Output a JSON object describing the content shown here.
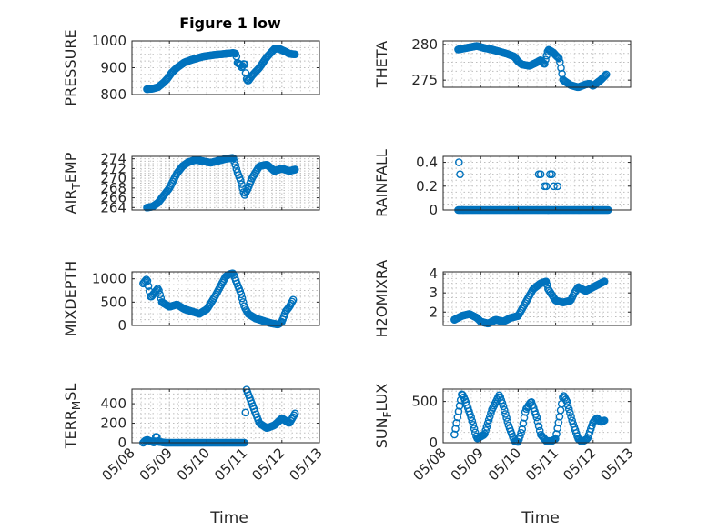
{
  "figure": {
    "title": "Figure 1 low"
  },
  "colors": {
    "marker": "#0072BD",
    "axis": "#262626",
    "grid": "#bdbdbd"
  },
  "x_axis": {
    "label": "Time",
    "ticks": [
      "05/08",
      "05/09",
      "05/10",
      "05/11",
      "05/12",
      "05/13"
    ],
    "range_days": [
      8,
      13
    ]
  },
  "chart_data": [
    {
      "type": "scatter",
      "title": "Figure 1 low",
      "ylabel": "PRESSURE",
      "ylim": [
        800,
        1000
      ],
      "yticks": [
        "800",
        "900",
        "1000"
      ],
      "x_kp": [
        8.4,
        8.55,
        8.7,
        8.85,
        8.95,
        9.05,
        9.2,
        9.4,
        9.6,
        9.9,
        10.2,
        10.5,
        10.7,
        10.78,
        10.8,
        10.9,
        10.93,
        11.0,
        11.05,
        11.1,
        11.2,
        11.4,
        11.6,
        11.8,
        11.9,
        12.1,
        12.2,
        12.35
      ],
      "y_kp": [
        820,
        822,
        828,
        845,
        860,
        880,
        900,
        920,
        930,
        942,
        948,
        952,
        955,
        952,
        920,
        910,
        900,
        920,
        860,
        850,
        870,
        900,
        940,
        970,
        972,
        960,
        952,
        950
      ],
      "n": 145,
      "grid": true,
      "legend": "none"
    },
    {
      "type": "scatter",
      "ylabel": "THETA",
      "ylim": [
        274,
        280.5
      ],
      "yticks": [
        "275",
        "280"
      ],
      "x_kp": [
        8.4,
        8.7,
        8.9,
        9.1,
        9.3,
        9.5,
        9.7,
        9.9,
        10.0,
        10.1,
        10.3,
        10.5,
        10.6,
        10.65,
        10.7,
        10.8,
        10.9,
        10.95,
        11.0,
        11.1,
        11.2,
        11.4,
        11.6,
        11.8,
        11.9,
        12.0,
        12.2,
        12.35
      ],
      "y_kp": [
        279.3,
        279.6,
        279.8,
        279.5,
        279.3,
        279.0,
        278.7,
        278.3,
        277.6,
        277.2,
        277.0,
        277.5,
        277.8,
        277.5,
        277.2,
        279.3,
        279.0,
        278.8,
        278.5,
        278.0,
        275.0,
        274.3,
        274.0,
        274.4,
        274.5,
        274.2,
        275.0,
        275.8
      ],
      "n": 145,
      "grid": true,
      "legend": "none"
    },
    {
      "type": "scatter",
      "ylabel": "AIR_TEMP",
      "ylim": [
        263.5,
        274.5
      ],
      "yticks": [
        "264",
        "266",
        "268",
        "270",
        "272",
        "274"
      ],
      "x_kp": [
        8.4,
        8.55,
        8.7,
        8.85,
        9.0,
        9.2,
        9.35,
        9.5,
        9.7,
        9.9,
        10.1,
        10.3,
        10.5,
        10.7,
        10.75,
        10.8,
        10.9,
        11.0,
        11.1,
        11.2,
        11.4,
        11.6,
        11.8,
        12.0,
        12.2,
        12.35
      ],
      "y_kp": [
        264.0,
        264.2,
        265.0,
        266.5,
        268.0,
        271.0,
        272.5,
        273.3,
        273.8,
        273.5,
        273.2,
        273.6,
        274.0,
        274.2,
        273.0,
        271.5,
        269.5,
        266.5,
        268.0,
        270.0,
        272.5,
        272.8,
        271.5,
        272.0,
        271.5,
        271.8
      ],
      "n": 145,
      "grid": true,
      "legend": "none"
    },
    {
      "type": "scatter",
      "ylabel": "RAINFALL",
      "ylim": [
        0,
        0.45
      ],
      "yticks": [
        "0",
        "0.2",
        "0.4"
      ],
      "x_kp": [
        8.4,
        12.4
      ],
      "y_kp": [
        0,
        0
      ],
      "extra_points": [
        [
          8.42,
          0.4
        ],
        [
          8.45,
          0.3
        ],
        [
          10.55,
          0.3
        ],
        [
          10.6,
          0.3
        ],
        [
          10.7,
          0.2
        ],
        [
          10.75,
          0.2
        ],
        [
          10.85,
          0.3
        ],
        [
          10.9,
          0.3
        ],
        [
          10.95,
          0.2
        ],
        [
          11.05,
          0.2
        ],
        [
          10.8,
          0.0
        ]
      ],
      "n": 145,
      "grid": true,
      "legend": "none"
    },
    {
      "type": "scatter",
      "ylabel": "MIXDEPTH",
      "ylim": [
        0,
        1150
      ],
      "yticks": [
        "0",
        "500",
        "1000"
      ],
      "x_kp": [
        8.3,
        8.4,
        8.5,
        8.6,
        8.7,
        8.8,
        9.0,
        9.2,
        9.4,
        9.6,
        9.8,
        10.0,
        10.2,
        10.4,
        10.5,
        10.6,
        10.7,
        10.8,
        10.9,
        11.0,
        11.1,
        11.3,
        11.5,
        11.7,
        11.9,
        12.0,
        12.1,
        12.2,
        12.3
      ],
      "y_kp": [
        900,
        1000,
        600,
        700,
        800,
        500,
        400,
        450,
        350,
        300,
        250,
        350,
        600,
        900,
        1050,
        1100,
        1120,
        900,
        700,
        400,
        250,
        150,
        100,
        50,
        20,
        80,
        300,
        400,
        550
      ],
      "n": 145,
      "grid": true,
      "legend": "none"
    },
    {
      "type": "scatter",
      "ylabel": "H2OMIXRA",
      "ylim": [
        1.3,
        4.1
      ],
      "yticks": [
        "2",
        "3",
        "4"
      ],
      "x_kp": [
        8.3,
        8.5,
        8.7,
        8.9,
        9.0,
        9.2,
        9.4,
        9.6,
        9.8,
        10.0,
        10.2,
        10.4,
        10.6,
        10.75,
        10.8,
        10.9,
        11.0,
        11.2,
        11.4,
        11.5,
        11.6,
        11.8,
        12.0,
        12.2,
        12.3
      ],
      "y_kp": [
        1.6,
        1.8,
        1.9,
        1.7,
        1.5,
        1.4,
        1.6,
        1.5,
        1.7,
        1.8,
        2.5,
        3.2,
        3.5,
        3.6,
        3.2,
        2.9,
        2.6,
        2.5,
        2.6,
        3.0,
        3.3,
        3.1,
        3.3,
        3.5,
        3.6
      ],
      "n": 145,
      "grid": true,
      "legend": "none"
    },
    {
      "type": "scatter",
      "ylabel": "TERR_MSL",
      "ylim": [
        0,
        550
      ],
      "yticks": [
        "0",
        "200",
        "400"
      ],
      "x_kp": [
        8.3,
        8.35,
        8.4,
        8.6,
        8.65,
        8.7,
        8.9,
        9.3,
        9.8,
        10.3,
        10.8,
        11.0,
        11.05,
        11.15,
        11.25,
        11.4,
        11.6,
        11.8,
        12.0,
        12.2,
        12.35
      ],
      "y_kp": [
        0,
        20,
        30,
        0,
        80,
        10,
        0,
        0,
        0,
        0,
        0,
        0,
        550,
        450,
        350,
        200,
        150,
        180,
        250,
        200,
        300
      ],
      "n": 145,
      "grid": true,
      "legend": "none"
    },
    {
      "type": "scatter",
      "ylabel": "SUN_FLUX",
      "ylim": [
        0,
        650
      ],
      "yticks": [
        "0",
        "500"
      ],
      "x_kp": [
        8.3,
        8.4,
        8.5,
        8.6,
        8.75,
        8.9,
        9.1,
        9.3,
        9.5,
        9.6,
        9.75,
        9.9,
        10.0,
        10.1,
        10.2,
        10.35,
        10.5,
        10.6,
        10.75,
        10.9,
        11.0,
        11.1,
        11.2,
        11.3,
        11.45,
        11.6,
        11.7,
        11.85,
        12.0,
        12.1,
        12.2,
        12.3
      ],
      "y_kp": [
        100,
        350,
        600,
        500,
        300,
        50,
        100,
        400,
        580,
        450,
        200,
        20,
        10,
        150,
        400,
        500,
        300,
        100,
        20,
        20,
        50,
        300,
        580,
        500,
        250,
        50,
        10,
        50,
        250,
        300,
        250,
        270
      ],
      "n": 145,
      "grid": true,
      "legend": "none"
    }
  ]
}
